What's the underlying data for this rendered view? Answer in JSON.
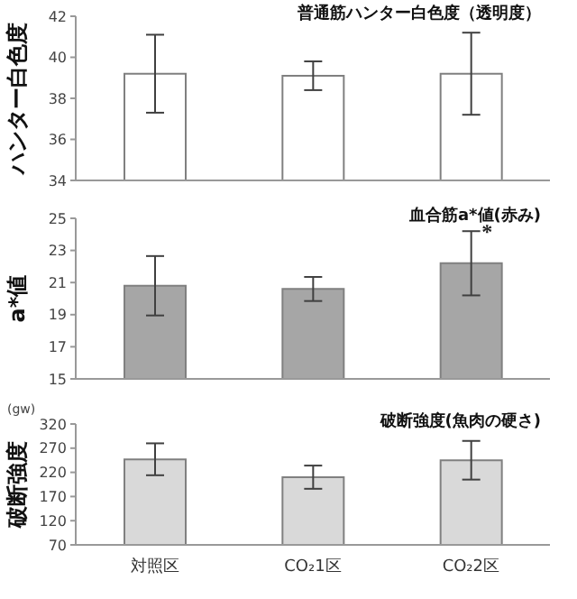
{
  "chart_data": [
    {
      "type": "bar",
      "title": "普通筋ハンター白色度（透明度）",
      "ylabel": "ハンター白色度",
      "categories": [
        "対照区",
        "CO₂1区",
        "CO₂2区"
      ],
      "values": [
        39.2,
        39.1,
        39.2
      ],
      "errors": [
        1.9,
        0.7,
        2.0
      ],
      "color": "#ffffff",
      "ylim": [
        34,
        42
      ],
      "yticks": [
        34,
        36,
        38,
        40,
        42
      ],
      "grid": false,
      "legend": false,
      "tick_labels": "y"
    },
    {
      "type": "bar",
      "title": "血合筋a*値(赤み)",
      "ylabel": "a*値",
      "categories": [
        "対照区",
        "CO₂1区",
        "CO₂2区"
      ],
      "values": [
        20.8,
        20.6,
        22.2
      ],
      "errors": [
        1.85,
        0.75,
        2.0
      ],
      "color": "#a6a6a6",
      "ylim": [
        15,
        25
      ],
      "yticks": [
        15,
        17,
        19,
        21,
        23,
        25
      ],
      "grid": false,
      "legend": false,
      "tick_labels": "y",
      "annotations": [
        {
          "text": "*",
          "x": "CO₂2区",
          "y": 24.2
        }
      ]
    },
    {
      "type": "bar",
      "title": "破断強度(魚肉の硬さ)",
      "ylabel": "破断強度",
      "categories": [
        "対照区",
        "CO₂1区",
        "CO₂2区"
      ],
      "values": [
        247,
        210,
        245
      ],
      "errors": [
        33,
        24,
        40
      ],
      "color": "#d9d9d9",
      "ylim": [
        70,
        320
      ],
      "yticks": [
        70,
        120,
        170,
        220,
        270,
        320
      ],
      "grid": false,
      "legend": false,
      "annotations": [
        "(gw)"
      ]
    }
  ]
}
